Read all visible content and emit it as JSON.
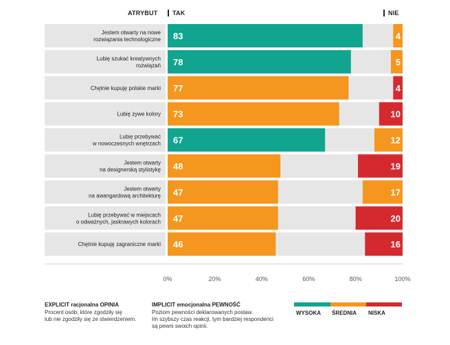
{
  "header": {
    "attribute_label": "ATRYBUT",
    "yes_label": "TAK",
    "no_label": "NIE"
  },
  "colors": {
    "high": "#11a58f",
    "medium": "#f5961f",
    "low": "#d42a2f",
    "background_bar": "#e6e6e6"
  },
  "chart_data": {
    "type": "bar",
    "orientation": "horizontal",
    "stacked": true,
    "categories": [
      "Jestem otwarty na nowe\nrozwiązania technologiczne",
      "Lubię szukać kreatywnych\nrozwiązań",
      "Chętnie kupuję polskie marki",
      "Lubię żywe kolory",
      "Lubię przebywać\nw nowoczesnych wnętrzach",
      "Jestem otwarty\nna designerską stylistykę",
      "Jestem otwarty\nna awangardową architekturę",
      "Lubię przebywać w miejscach\no odważnych, jaskrawych kolorach",
      "Chętnie kupuję zagraniczne marki"
    ],
    "series": [
      {
        "name": "TAK",
        "values": [
          83,
          78,
          77,
          73,
          67,
          48,
          47,
          47,
          46
        ],
        "certainty": [
          "high",
          "high",
          "medium",
          "medium",
          "high",
          "medium",
          "medium",
          "medium",
          "medium"
        ]
      },
      {
        "name": "NIE",
        "values": [
          4,
          5,
          4,
          10,
          12,
          19,
          17,
          20,
          16
        ],
        "certainty": [
          "medium",
          "medium",
          "low",
          "low",
          "medium",
          "low",
          "medium",
          "low",
          "low"
        ]
      }
    ],
    "x_ticks": [
      "0%",
      "20%",
      "40%",
      "60%",
      "80%",
      "100%"
    ],
    "xlim": [
      0,
      100
    ]
  },
  "footer": {
    "explicit_title": "EXPLICIT racjonalna OPINIA",
    "explicit_text_1": "Procent osób, które zgodziły się",
    "explicit_text_2": "lub nie zgodziły się ze stwierdzeniem.",
    "implicit_title": "IMPLICIT emocjonalna PEWNOŚĆ",
    "implicit_text_1": "Poziom pewności deklarowanych postaw.",
    "implicit_text_2": "Im szybszy czas reakcji, tym bardziej respondenci",
    "implicit_text_3": "są pewni swoich opinii.",
    "legend_high": "WYSOKA",
    "legend_medium": "ŚREDNIA",
    "legend_low": "NISKA"
  }
}
